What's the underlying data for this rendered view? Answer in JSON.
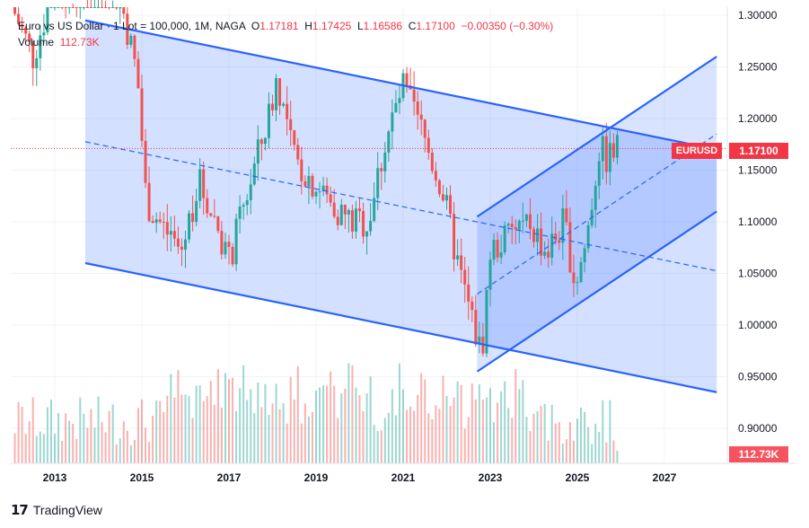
{
  "legend": {
    "symbol": "Euro vs US Dollar",
    "lot": "1 Lot = 100,000",
    "timeframe": "1M",
    "broker": "NAGA",
    "open_label": "O",
    "open": "1.17181",
    "high_label": "H",
    "high": "1.17425",
    "low_label": "L",
    "low": "1.16586",
    "close_label": "C",
    "close": "1.17100",
    "change": "−0.00350 (−0.30%)",
    "volume_label": "Volume",
    "volume": "112.73K"
  },
  "tags": {
    "symbol": "EURUSD",
    "price": "1.17100",
    "volume": "112.73K"
  },
  "branding": {
    "logo": "17",
    "name": "TradingView"
  },
  "colors": {
    "up": "#26a69a",
    "down": "#ef5350",
    "channel": "#2962ff",
    "channel_fill": "#2962ff",
    "price_line": "#f23645"
  },
  "chart_data": {
    "type": "candlestick",
    "x_axis_ticks": [
      "2013",
      "2015",
      "2017",
      "2019",
      "2021",
      "2023",
      "2025",
      "2027"
    ],
    "y_axis_ticks": [
      "1.30000",
      "1.25000",
      "1.20000",
      "1.15000",
      "1.10000",
      "1.05000",
      "1.00000",
      "0.95000",
      "0.90000"
    ],
    "ylim": [
      0.885,
      1.305
    ],
    "current_price": 1.171,
    "series": [
      {
        "name": "price",
        "type": "candlestick",
        "approx_monthly_closes": [
          [
            2012.0,
            1.31
          ],
          [
            2012.5,
            1.26
          ],
          [
            2013.0,
            1.33
          ],
          [
            2013.5,
            1.32
          ],
          [
            2014.0,
            1.36
          ],
          [
            2014.6,
            1.3
          ],
          [
            2014.9,
            1.24
          ],
          [
            2015.1,
            1.12
          ],
          [
            2015.4,
            1.1
          ],
          [
            2015.9,
            1.07
          ],
          [
            2016.3,
            1.14
          ],
          [
            2016.8,
            1.09
          ],
          [
            2017.0,
            1.06
          ],
          [
            2017.5,
            1.14
          ],
          [
            2017.9,
            1.2
          ],
          [
            2018.1,
            1.24
          ],
          [
            2018.5,
            1.16
          ],
          [
            2018.9,
            1.14
          ],
          [
            2019.3,
            1.12
          ],
          [
            2019.8,
            1.1
          ],
          [
            2020.2,
            1.1
          ],
          [
            2020.6,
            1.18
          ],
          [
            2021.0,
            1.23
          ],
          [
            2021.4,
            1.19
          ],
          [
            2021.9,
            1.13
          ],
          [
            2022.3,
            1.05
          ],
          [
            2022.8,
            0.97
          ],
          [
            2023.0,
            1.07
          ],
          [
            2023.5,
            1.09
          ],
          [
            2023.9,
            1.1
          ],
          [
            2024.3,
            1.07
          ],
          [
            2024.7,
            1.1
          ],
          [
            2024.95,
            1.04
          ],
          [
            2025.2,
            1.08
          ],
          [
            2025.5,
            1.17
          ],
          [
            2025.7,
            1.16
          ],
          [
            2025.9,
            1.171
          ]
        ]
      }
    ],
    "channels": [
      {
        "name": "descending channel",
        "upper": [
          [
            2013.7,
            1.295
          ],
          [
            2028.2,
            1.17
          ]
        ],
        "lower": [
          [
            2013.7,
            1.06
          ],
          [
            2028.2,
            0.935
          ]
        ],
        "midline_dashed": true
      },
      {
        "name": "ascending channel",
        "upper": [
          [
            2022.7,
            1.105
          ],
          [
            2028.2,
            1.26
          ]
        ],
        "lower": [
          [
            2022.7,
            0.955
          ],
          [
            2028.2,
            1.11
          ]
        ],
        "midline_dashed": true
      }
    ],
    "volume": {
      "last": "112.73K"
    }
  }
}
